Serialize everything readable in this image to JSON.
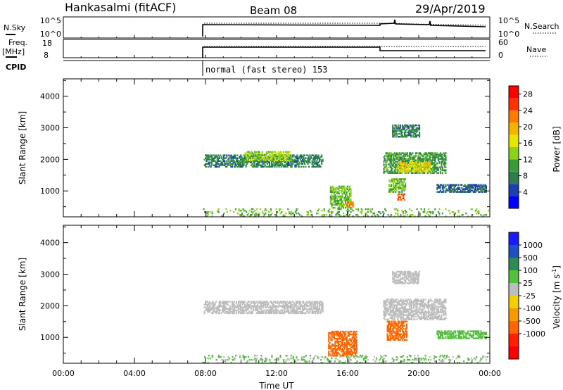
{
  "header": {
    "station": "Hankasalmi (fitACF)",
    "beam": "Beam 08",
    "date": "29/Apr/2019"
  },
  "strips": {
    "nsky": {
      "left_label": "N.Sky",
      "left_ticks": [
        "10^5",
        "10^0"
      ],
      "right_label": "N.Search",
      "right_ticks": [
        "10^5",
        "10^0"
      ]
    },
    "freq": {
      "left_label": "Freq.",
      "left_unit": "[MHz]",
      "left_ticks": [
        "18",
        "8"
      ],
      "right_label": "Nave",
      "right_ticks": [
        "60",
        "0"
      ]
    },
    "cpid": {
      "label": "CPID",
      "mode_text": "normal (fast stereo) 153"
    }
  },
  "colors": {
    "power": [
      "#0000ff",
      "#1c3fb0",
      "#2e7d4f",
      "#3a9b3a",
      "#8ad21e",
      "#e6e600",
      "#f5b400",
      "#ff7a00",
      "#ff3300",
      "#ff0000"
    ],
    "velocity": [
      "#1a1aff",
      "#2050c0",
      "#2f8a55",
      "#55c040",
      "#bdbdbd",
      "#f0d000",
      "#f59a00",
      "#ff6600",
      "#ff2000",
      "#ff0000"
    ],
    "ground": "#9e9e9e"
  },
  "chart_data": [
    {
      "type": "heatmap",
      "name": "power",
      "ylabel": "Slant Range [km]",
      "xlabel": "",
      "xlim": [
        "00:00",
        "24:00"
      ],
      "ylim": [
        180,
        4550
      ],
      "y_ticks": [
        "1000",
        "2000",
        "3000",
        "4000"
      ],
      "colorbar": {
        "label": "Power [dB]",
        "ticks": [
          "4",
          "8",
          "12",
          "16",
          "20",
          "24",
          "28"
        ],
        "range": [
          0,
          30
        ]
      },
      "regions": [
        {
          "t": [
            7.9,
            14.6
          ],
          "r": [
            1750,
            2150
          ],
          "value": 8
        },
        {
          "t": [
            10.2,
            12.8
          ],
          "r": [
            1950,
            2250
          ],
          "value": 14
        },
        {
          "t": [
            15.0,
            16.2
          ],
          "r": [
            450,
            1150
          ],
          "value": 12
        },
        {
          "t": [
            15.9,
            16.3
          ],
          "r": [
            480,
            650
          ],
          "value": 22
        },
        {
          "t": [
            18.0,
            21.5
          ],
          "r": [
            1550,
            2200
          ],
          "value": 10
        },
        {
          "t": [
            18.8,
            20.6
          ],
          "r": [
            1600,
            1900
          ],
          "value": 17
        },
        {
          "t": [
            18.3,
            19.2
          ],
          "r": [
            950,
            1400
          ],
          "value": 12
        },
        {
          "t": [
            18.8,
            19.2
          ],
          "r": [
            700,
            900
          ],
          "value": 24
        },
        {
          "t": [
            18.5,
            20.0
          ],
          "r": [
            2700,
            3100
          ],
          "value": 8
        },
        {
          "t": [
            21.0,
            23.8
          ],
          "r": [
            950,
            1200
          ],
          "value": 6
        },
        {
          "t": [
            7.8,
            23.9
          ],
          "r": [
            180,
            420
          ],
          "value": 12
        }
      ]
    },
    {
      "type": "heatmap",
      "name": "velocity",
      "ylabel": "Slant Range [km]",
      "xlabel": "Time UT",
      "xlim": [
        "00:00",
        "24:00"
      ],
      "ylim": [
        180,
        4550
      ],
      "x_ticks": [
        "00:00",
        "04:00",
        "08:00",
        "12:00",
        "16:00",
        "20:00",
        "00:00"
      ],
      "y_ticks": [
        "1000",
        "2000",
        "3000",
        "4000"
      ],
      "colorbar": {
        "label": "Velocity [m s^-1]",
        "ticks": [
          "1000",
          "500",
          "100",
          "25",
          "-25",
          "-100",
          "-500",
          "-1000"
        ],
        "range": [
          -1000,
          1000
        ]
      },
      "regions": [
        {
          "t": [
            7.9,
            14.6
          ],
          "r": [
            1750,
            2150
          ],
          "value": 0
        },
        {
          "t": [
            14.9,
            16.5
          ],
          "r": [
            400,
            1200
          ],
          "value": -300
        },
        {
          "t": [
            18.2,
            19.3
          ],
          "r": [
            900,
            1500
          ],
          "value": -400
        },
        {
          "t": [
            18.0,
            21.5
          ],
          "r": [
            1550,
            2200
          ],
          "value": 0
        },
        {
          "t": [
            18.5,
            20.0
          ],
          "r": [
            2700,
            3100
          ],
          "value": 0
        },
        {
          "t": [
            21.0,
            23.8
          ],
          "r": [
            950,
            1200
          ],
          "value": 50
        },
        {
          "t": [
            7.8,
            23.9
          ],
          "r": [
            180,
            420
          ],
          "value": 30
        }
      ]
    }
  ]
}
